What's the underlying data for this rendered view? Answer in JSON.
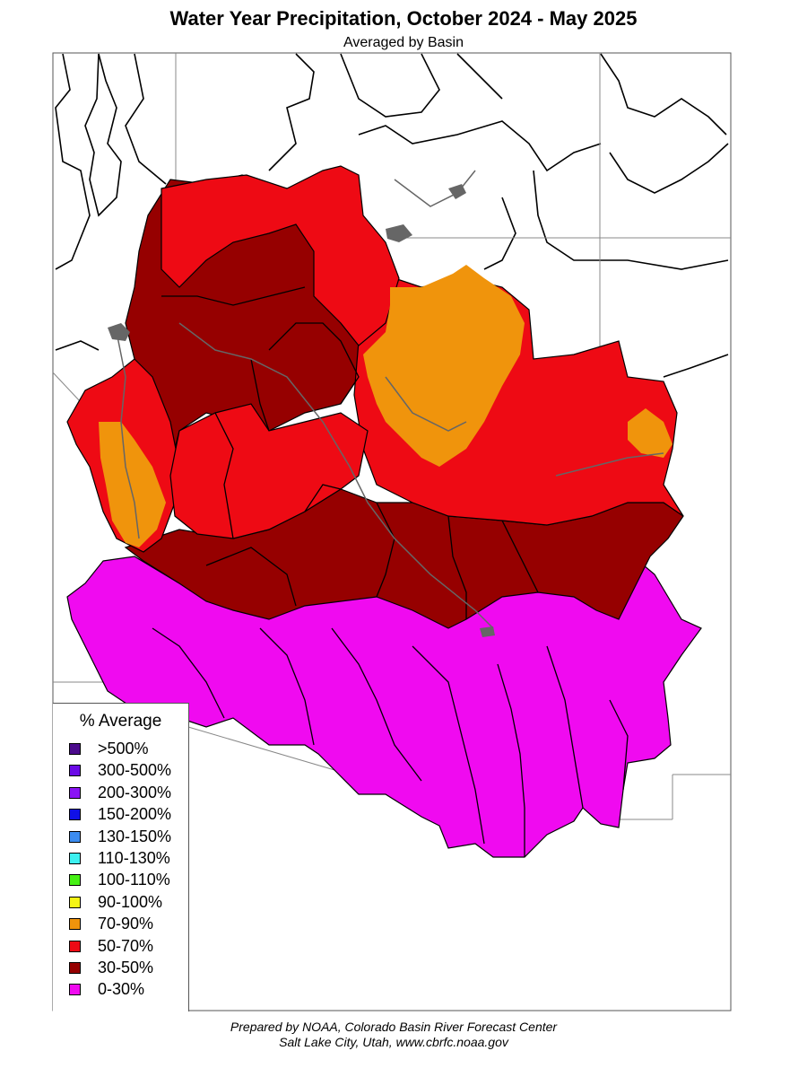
{
  "title": "Water Year Precipitation, October 2024 - May 2025",
  "subtitle": "Averaged by Basin",
  "legend": {
    "title": "% Average",
    "items": [
      {
        "label": ">500%",
        "color": "#4b0a8c"
      },
      {
        "label": "300-500%",
        "color": "#6a0ae6"
      },
      {
        "label": "200-300%",
        "color": "#8a14f5"
      },
      {
        "label": "150-200%",
        "color": "#1010e6"
      },
      {
        "label": "130-150%",
        "color": "#3c8cf0"
      },
      {
        "label": "110-130%",
        "color": "#3cf0f0"
      },
      {
        "label": "100-110%",
        "color": "#46f014"
      },
      {
        "label": "90-100%",
        "color": "#f5f514"
      },
      {
        "label": "70-90%",
        "color": "#f0940c"
      },
      {
        "label": "50-70%",
        "color": "#ee0a14"
      },
      {
        "label": "30-50%",
        "color": "#960000"
      },
      {
        "label": "0-30%",
        "color": "#f00af0"
      }
    ]
  },
  "credit": {
    "line1": "Prepared by NOAA, Colorado Basin River Forecast Center",
    "line2": "Salt Lake City, Utah, www.cbrfc.noaa.gov"
  }
}
